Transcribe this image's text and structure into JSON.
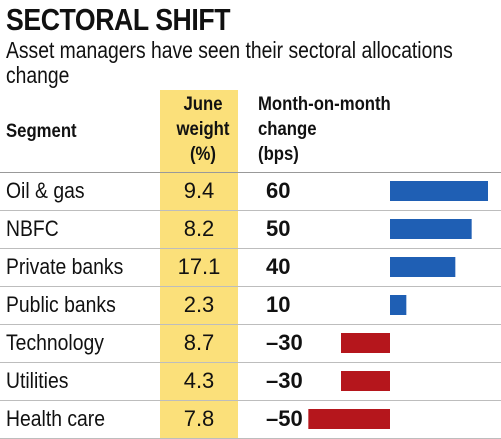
{
  "header": {
    "title": "SECTORAL SHIFT",
    "subtitle": "Asset managers have seen their sectoral allocations change"
  },
  "columns": {
    "segment": "Segment",
    "weight": [
      "June",
      "weight",
      "(%)"
    ],
    "change": [
      "Month-on-month",
      "change",
      "(bps)"
    ]
  },
  "colors": {
    "highlight": "#fbe07a",
    "positive": "#1f5fb4",
    "negative": "#b5161c"
  },
  "chart_data": {
    "type": "bar",
    "orientation": "horizontal",
    "title": "SECTORAL SHIFT",
    "subtitle": "Asset managers have seen their sectoral allocations change",
    "categories": [
      "Oil & gas",
      "NBFC",
      "Private banks",
      "Public banks",
      "Technology",
      "Utilities",
      "Health care"
    ],
    "june_weight": [
      "9.4",
      "8.2",
      "17.1",
      "2.3",
      "8.7",
      "4.3",
      "7.8"
    ],
    "change_labels": [
      "60",
      "50",
      "40",
      "10",
      "-30",
      "-30",
      "-50"
    ],
    "series": [
      {
        "values": [
          60,
          50,
          40,
          10,
          -30,
          -30,
          -50
        ]
      }
    ],
    "xlim": [
      -50,
      60
    ],
    "grid": false,
    "legend": "none"
  }
}
